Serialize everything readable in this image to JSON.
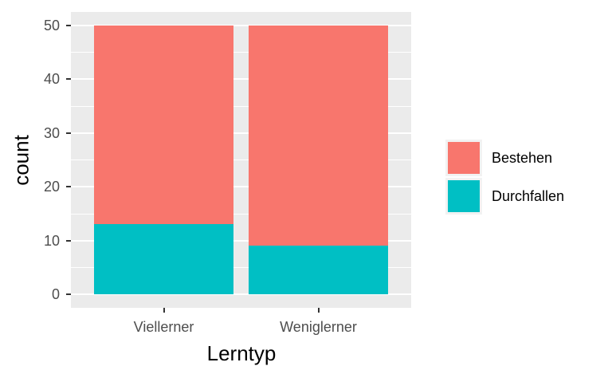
{
  "chart_data": {
    "type": "bar",
    "stacked": true,
    "categories": [
      "Viellerner",
      "Weniglerner"
    ],
    "series": [
      {
        "name": "Bestehen",
        "color": "#F8766D",
        "values": [
          37,
          41
        ]
      },
      {
        "name": "Durchfallen",
        "color": "#00BFC4",
        "values": [
          13,
          9
        ]
      }
    ],
    "stack_totals": [
      50,
      50
    ],
    "title": "",
    "xlabel": "Lerntyp",
    "ylabel": "count",
    "ylim": [
      0,
      50
    ],
    "yticks": [
      0,
      10,
      20,
      30,
      40,
      50
    ],
    "yticks_minor": [
      5,
      15,
      25,
      35,
      45
    ],
    "grid": true,
    "legend_position": "right",
    "colors": {
      "panel_bg": "#EBEBEB",
      "grid_major": "#FFFFFF",
      "grid_minor": "#FFFFFF",
      "tick_mark": "#333333",
      "tick_label": "#4D4D4D",
      "axis_title": "#000000",
      "legend_key_bg": "#F2F2F2"
    }
  }
}
